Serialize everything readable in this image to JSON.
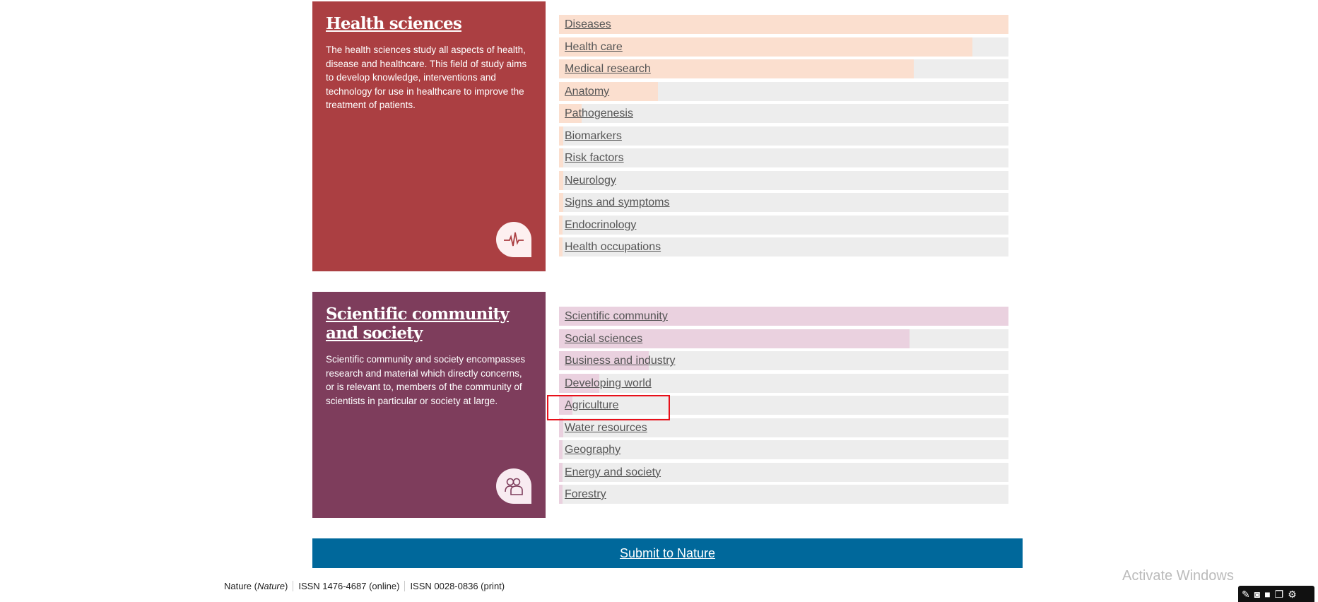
{
  "sections": [
    {
      "title": "Health sciences",
      "description": "The health sciences study all aspects of health, disease and healthcare. This field of study aims to develop knowledge, interventions and technology for use in healthcare to improve the treatment of patients.",
      "icon": "heartbeat-icon",
      "panel_color": "#ab3f42",
      "bar_color": "#fbdfcf",
      "topics": [
        {
          "label": "Diseases",
          "share": 1.0
        },
        {
          "label": "Health care",
          "share": 0.92
        },
        {
          "label": "Medical research",
          "share": 0.79
        },
        {
          "label": "Anatomy",
          "share": 0.22
        },
        {
          "label": "Pathogenesis",
          "share": 0.05
        },
        {
          "label": "Biomarkers",
          "share": 0.01
        },
        {
          "label": "Risk factors",
          "share": 0.01
        },
        {
          "label": "Neurology",
          "share": 0.01
        },
        {
          "label": "Signs and symptoms",
          "share": 0.01
        },
        {
          "label": "Endocrinology",
          "share": 0.0
        },
        {
          "label": "Health occupations",
          "share": 0.0
        }
      ]
    },
    {
      "title": "Scientific community and society",
      "description": "Scientific community and society encompasses research and material which directly concerns, or is relevant to, members of the community of scientists in particular or society at large.",
      "icon": "people-icon",
      "panel_color": "#7e3d5c",
      "bar_color": "#ead1df",
      "topics": [
        {
          "label": "Scientific community",
          "share": 1.0
        },
        {
          "label": "Social sciences",
          "share": 0.78
        },
        {
          "label": "Business and industry",
          "share": 0.2
        },
        {
          "label": "Developing world",
          "share": 0.09
        },
        {
          "label": "Agriculture",
          "share": 0.03
        },
        {
          "label": "Water resources",
          "share": 0.01
        },
        {
          "label": "Geography",
          "share": 0.0
        },
        {
          "label": "Energy and society",
          "share": 0.0
        },
        {
          "label": "Forestry",
          "share": 0.0
        }
      ]
    }
  ],
  "submit": {
    "label": "Submit to Nature",
    "color": "#00689b"
  },
  "footer": {
    "journal": "Nature (",
    "journal_italic": "Nature",
    "journal_close": ")",
    "issn_online": "ISSN 1476-4687 (online)",
    "issn_print": "ISSN 0028-0836 (print)"
  },
  "watermark": "Activate Windows",
  "highlight": {
    "target": "Agriculture",
    "color": "#e8101a"
  }
}
